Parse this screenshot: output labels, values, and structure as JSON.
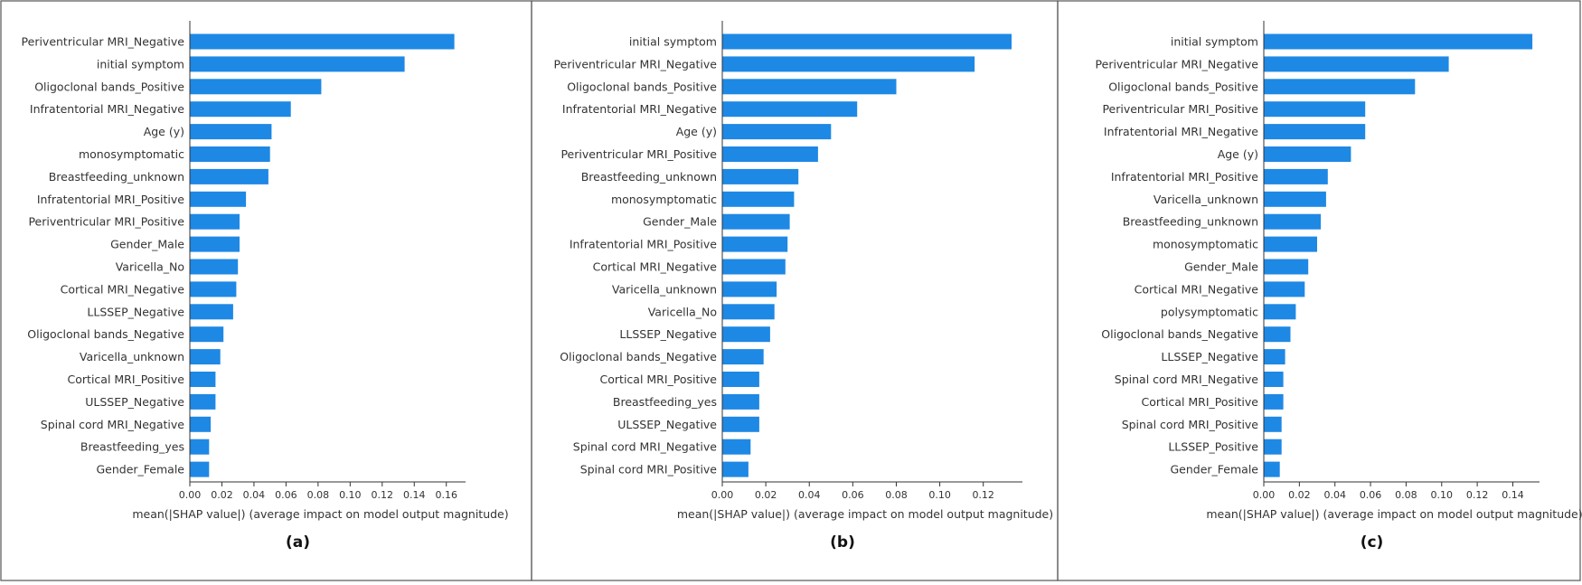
{
  "chart_data": [
    {
      "type": "bar",
      "orientation": "horizontal",
      "panel_label": "(a)",
      "xlabel": "mean(|SHAP value|) (average impact on model output magnitude)",
      "xlim": [
        0,
        0.172
      ],
      "xticks": [
        0.0,
        0.02,
        0.04,
        0.06,
        0.08,
        0.1,
        0.12,
        0.14,
        0.16
      ],
      "xtick_labels": [
        "0.00",
        "0.02",
        "0.04",
        "0.06",
        "0.08",
        "0.10",
        "0.12",
        "0.14",
        "0.16"
      ],
      "bar_color": "#1e88e5",
      "categories": [
        "Periventricular MRI_Negative",
        "initial symptom",
        "Oligoclonal bands_Positive",
        "Infratentorial MRI_Negative",
        "Age (y)",
        "monosymptomatic",
        "Breastfeeding_unknown",
        "Infratentorial MRI_Positive",
        "Periventricular MRI_Positive",
        "Gender_Male",
        "Varicella_No",
        "Cortical MRI_Negative",
        "LLSSEP_Negative",
        "Oligoclonal bands_Negative",
        "Varicella_unknown",
        "Cortical MRI_Positive",
        "ULSSEP_Negative",
        "Spinal cord MRI_Negative",
        "Breastfeeding_yes",
        "Gender_Female"
      ],
      "values": [
        0.165,
        0.134,
        0.082,
        0.063,
        0.051,
        0.05,
        0.049,
        0.035,
        0.031,
        0.031,
        0.03,
        0.029,
        0.027,
        0.021,
        0.019,
        0.016,
        0.016,
        0.013,
        0.012,
        0.012
      ]
    },
    {
      "type": "bar",
      "orientation": "horizontal",
      "panel_label": "(b)",
      "xlabel": "mean(|SHAP value|) (average impact on model output magnitude)",
      "xlim": [
        0,
        0.138
      ],
      "xticks": [
        0.0,
        0.02,
        0.04,
        0.06,
        0.08,
        0.1,
        0.12
      ],
      "xtick_labels": [
        "0.00",
        "0.02",
        "0.04",
        "0.06",
        "0.08",
        "0.10",
        "0.12"
      ],
      "bar_color": "#1e88e5",
      "categories": [
        "initial symptom",
        "Periventricular MRI_Negative",
        "Oligoclonal bands_Positive",
        "Infratentorial MRI_Negative",
        "Age (y)",
        "Periventricular MRI_Positive",
        "Breastfeeding_unknown",
        "monosymptomatic",
        "Gender_Male",
        "Infratentorial MRI_Positive",
        "Cortical MRI_Negative",
        "Varicella_unknown",
        "Varicella_No",
        "LLSSEP_Negative",
        "Oligoclonal bands_Negative",
        "Cortical MRI_Positive",
        "Breastfeeding_yes",
        "ULSSEP_Negative",
        "Spinal cord MRI_Negative",
        "Spinal cord MRI_Positive"
      ],
      "values": [
        0.133,
        0.116,
        0.08,
        0.062,
        0.05,
        0.044,
        0.035,
        0.033,
        0.031,
        0.03,
        0.029,
        0.025,
        0.024,
        0.022,
        0.019,
        0.017,
        0.017,
        0.017,
        0.013,
        0.012
      ]
    },
    {
      "type": "bar",
      "orientation": "horizontal",
      "panel_label": "(c)",
      "xlabel": "mean(|SHAP value|) (average impact on model output magnitude)",
      "xlim": [
        0,
        0.155
      ],
      "xticks": [
        0.0,
        0.02,
        0.04,
        0.06,
        0.08,
        0.1,
        0.12,
        0.14
      ],
      "xtick_labels": [
        "0.00",
        "0.02",
        "0.04",
        "0.06",
        "0.08",
        "0.10",
        "0.12",
        "0.14"
      ],
      "bar_color": "#1e88e5",
      "categories": [
        "initial symptom",
        "Periventricular MRI_Negative",
        "Oligoclonal bands_Positive",
        "Periventricular MRI_Positive",
        "Infratentorial MRI_Negative",
        "Age (y)",
        "Infratentorial MRI_Positive",
        "Varicella_unknown",
        "Breastfeeding_unknown",
        "monosymptomatic",
        "Gender_Male",
        "Cortical MRI_Negative",
        "polysymptomatic",
        "Oligoclonal bands_Negative",
        "LLSSEP_Negative",
        "Spinal cord MRI_Negative",
        "Cortical MRI_Positive",
        "Spinal cord MRI_Positive",
        "LLSSEP_Positive",
        "Gender_Female"
      ],
      "values": [
        0.151,
        0.104,
        0.085,
        0.057,
        0.057,
        0.049,
        0.036,
        0.035,
        0.032,
        0.03,
        0.025,
        0.023,
        0.018,
        0.015,
        0.012,
        0.011,
        0.011,
        0.01,
        0.01,
        0.009
      ]
    }
  ]
}
